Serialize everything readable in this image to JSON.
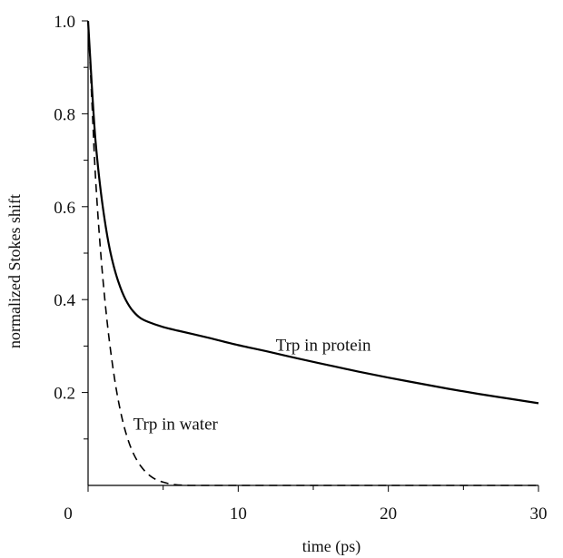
{
  "chart_data": {
    "type": "line",
    "title": "",
    "xlabel": "time (ps)",
    "ylabel": "normalized Stokes shift",
    "xlim": [
      0,
      30
    ],
    "ylim": [
      0,
      1.0
    ],
    "x_ticks_major": [
      0,
      10,
      20,
      30
    ],
    "x_tick_labels": [
      "0",
      "10",
      "20",
      "30"
    ],
    "x_ticks_minor": [
      5,
      15,
      25
    ],
    "y_ticks_major": [
      0.2,
      0.4,
      0.6,
      0.8,
      1.0
    ],
    "y_tick_labels": [
      "0.2",
      "0.4",
      "0.6",
      "0.8",
      "1.0"
    ],
    "y_ticks_minor": [
      0.1,
      0.3,
      0.5,
      0.7,
      0.9
    ],
    "grid": false,
    "legend": "none",
    "series": [
      {
        "label": "Trp in protein",
        "style": "solid",
        "color": "#000000",
        "x": [
          0,
          0.25,
          0.5,
          1,
          1.5,
          2,
          2.5,
          3,
          3.5,
          4,
          5,
          6,
          8,
          10,
          12,
          14,
          16,
          18,
          20,
          22,
          24,
          26,
          28,
          30
        ],
        "y": [
          1.0,
          0.86,
          0.74,
          0.595,
          0.5,
          0.44,
          0.4,
          0.375,
          0.36,
          0.352,
          0.341,
          0.333,
          0.318,
          0.302,
          0.288,
          0.273,
          0.259,
          0.245,
          0.232,
          0.22,
          0.208,
          0.197,
          0.187,
          0.177
        ]
      },
      {
        "label": "Trp in water",
        "style": "dashed",
        "color": "#000000",
        "x": [
          0,
          0.25,
          0.5,
          1,
          1.5,
          2,
          2.5,
          3,
          3.5,
          4,
          4.5,
          5,
          5.5,
          6,
          7,
          8,
          10,
          15,
          20,
          25,
          30
        ],
        "y": [
          1.0,
          0.83,
          0.66,
          0.44,
          0.29,
          0.185,
          0.115,
          0.07,
          0.042,
          0.024,
          0.013,
          0.007,
          0.003,
          0.001,
          0,
          0,
          0,
          0,
          0,
          0,
          0
        ]
      }
    ],
    "annotations": [
      {
        "text": "Trp in protein",
        "x": 12.5,
        "y": 0.29
      },
      {
        "text": "Trp in water",
        "x": 3.0,
        "y": 0.12
      }
    ]
  }
}
